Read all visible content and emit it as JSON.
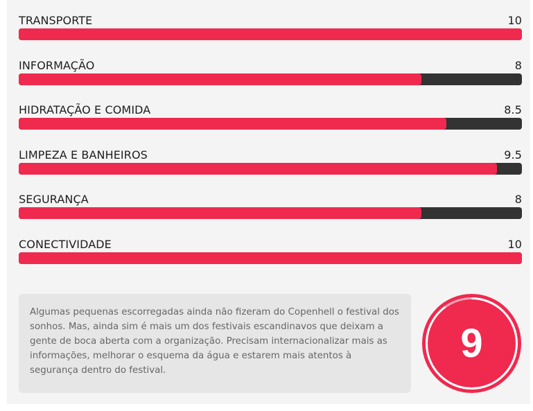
{
  "colors": {
    "accent": "#f0294f",
    "track": "#333333",
    "summary_bg": "#e6e6e6",
    "panel_bg": "#f4f4f4"
  },
  "ratings": {
    "max": 10,
    "items": [
      {
        "label": "TRANSPORTE",
        "value": "10",
        "score": 10
      },
      {
        "label": "INFORMAÇÃO",
        "value": "8",
        "score": 8
      },
      {
        "label": "HIDRATAÇÃO E COMIDA",
        "value": "8.5",
        "score": 8.5
      },
      {
        "label": "LIMPEZA E BANHEIROS",
        "value": "9.5",
        "score": 9.5
      },
      {
        "label": "SEGURANÇA",
        "value": "8",
        "score": 8
      },
      {
        "label": "CONECTIVIDADE",
        "value": "10",
        "score": 10
      }
    ]
  },
  "summary": {
    "text": "Algumas pequenas escorregadas ainda não fizeram do Copenhell o festival dos sonhos. Mas, ainda sim é mais um dos festivais escandinavos que deixam a gente de boca aberta com a organização. Precisam internacionalizar mais as informações, melhorar o esquema da água e estarem mais atentos à segurança dentro do festival."
  },
  "overall": {
    "score": "9",
    "score_value": 9,
    "max": 10
  }
}
